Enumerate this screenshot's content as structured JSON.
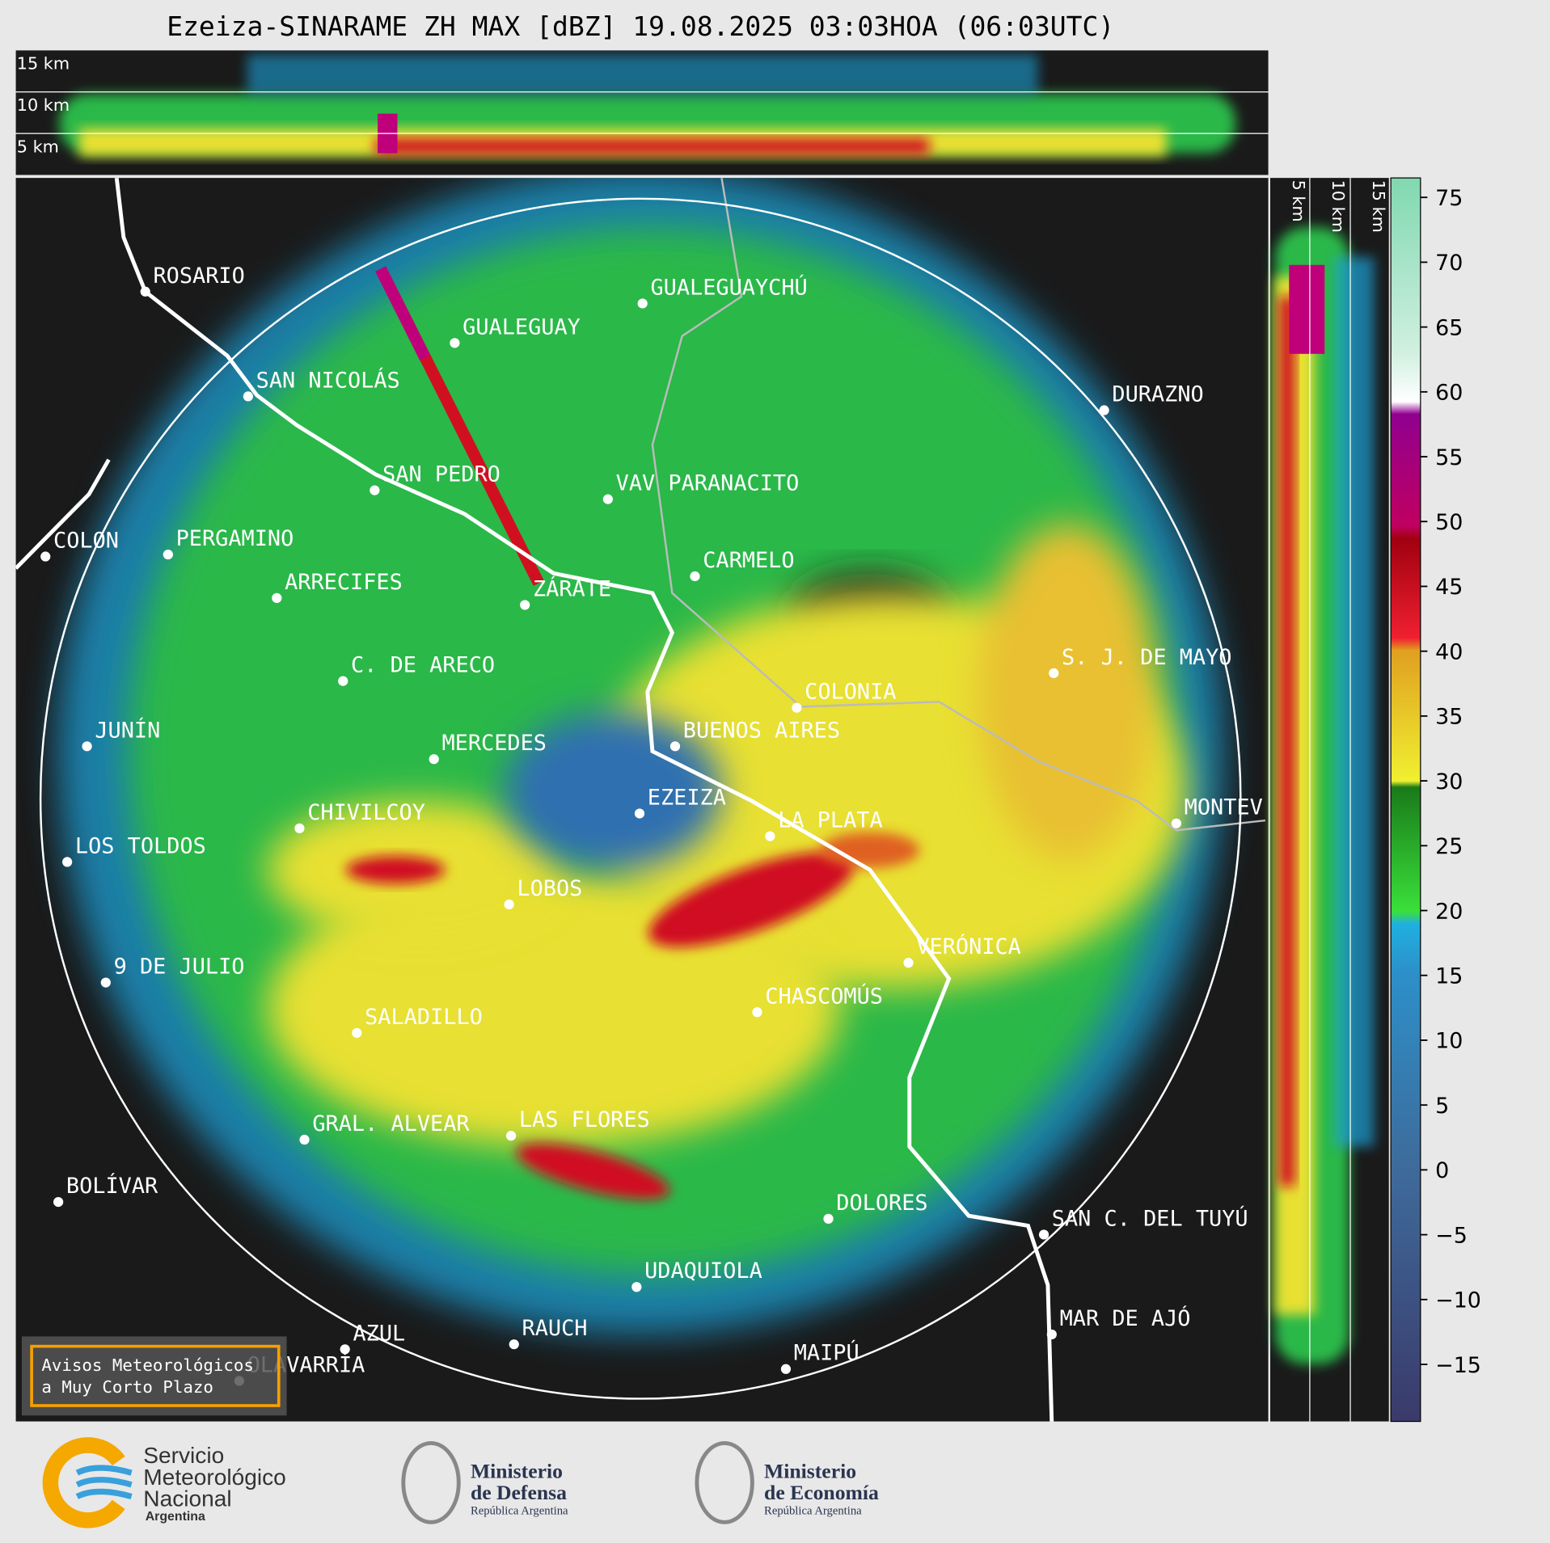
{
  "title": "Ezeiza-SINARAME ZH MAX [dBZ] 19.08.2025 03:03HOA (06:03UTC)",
  "cross_section": {
    "top_labels": [
      "15 km",
      "10 km",
      "5 km"
    ],
    "side_labels": [
      "5 km",
      "10 km",
      "15 km"
    ]
  },
  "map": {
    "cities": [
      "ROSARIO",
      "GUALEGUAYCHÚ",
      "GUALEGUAY",
      "SAN NICOLÁS",
      "DURAZNO",
      "SAN PEDRO",
      "VAV PARANACITO",
      "COLON",
      "PERGAMINO",
      "CARMELO",
      "ARRECIFES",
      "ZÁRATE",
      "S. J. DE MAYO",
      "C. DE ARECO",
      "COLONIA",
      "JUNÍN",
      "BUENOS AIRES",
      "MERCEDES",
      "MONTEV",
      "EZEIZA",
      "CHIVILCOY",
      "LA PLATA",
      "LOS TOLDOS",
      "LOBOS",
      "VERÓNICA",
      "9 DE JULIO",
      "CHASCOMÚS",
      "SALADILLO",
      "GRAL. ALVEAR",
      "LAS FLORES",
      "BOLÍVAR",
      "DOLORES",
      "SAN C. DEL TUYÚ",
      "UDAQUIOLA",
      "MAR DE AJÓ",
      "AZUL",
      "RAUCH",
      "MAIPÚ",
      "OLAVARRÍA"
    ]
  },
  "colorbar": {
    "lim": [
      -19.4,
      76.5
    ],
    "ticks": [
      75,
      70,
      65,
      60,
      55,
      50,
      45,
      40,
      35,
      30,
      25,
      20,
      15,
      10,
      5,
      0,
      {
        "value": -5,
        "label": "−5"
      },
      {
        "value": -10,
        "label": "−10"
      },
      {
        "value": -15,
        "label": "−15"
      }
    ]
  },
  "warning_box": {
    "lines": [
      "Avisos Meteorológicos",
      "a Muy Corto Plazo"
    ]
  },
  "footer": {
    "smn": [
      "Servicio",
      "Meteorológico",
      "Nacional",
      "Argentina"
    ],
    "defensa": [
      "Ministerio",
      "de Defensa",
      "República Argentina"
    ],
    "economia": [
      "Ministerio",
      "de Economía",
      "República Argentina"
    ]
  }
}
